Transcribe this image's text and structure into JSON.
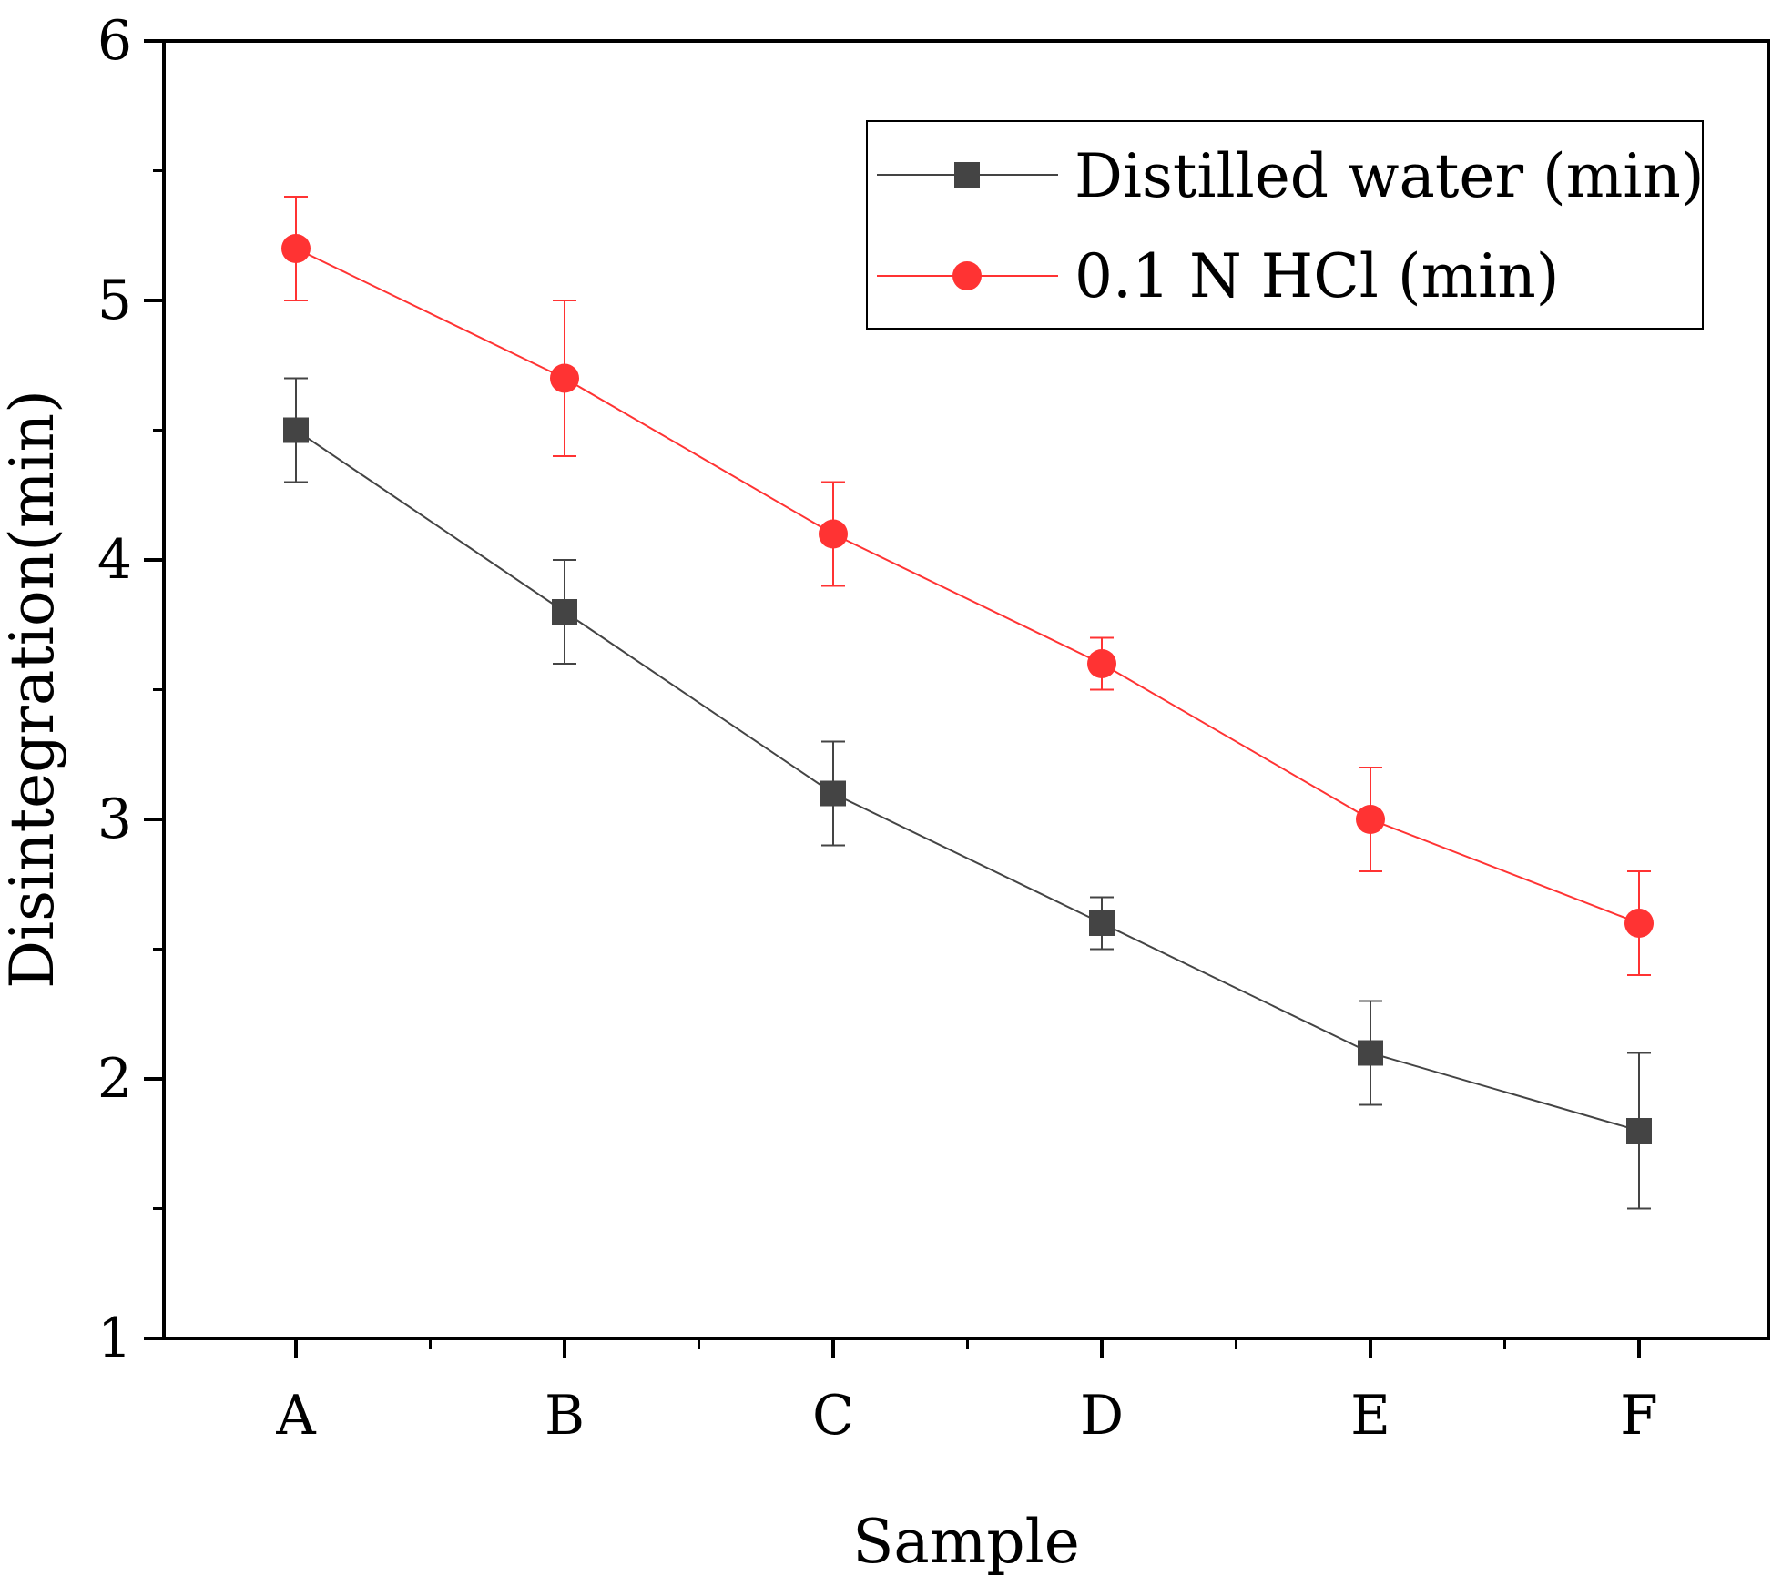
{
  "chart_data": {
    "type": "line",
    "title": "",
    "xlabel": "Sample",
    "ylabel": "Disintegration(min)",
    "categories": [
      "A",
      "B",
      "C",
      "D",
      "E",
      "F"
    ],
    "ylim": [
      1,
      6
    ],
    "yticks": [
      1,
      2,
      3,
      4,
      5,
      6
    ],
    "grid": false,
    "legend_position": "top-right",
    "series": [
      {
        "name": "Distilled water (min)",
        "marker": "square",
        "color": "#444444",
        "values": [
          4.5,
          3.8,
          3.1,
          2.6,
          2.1,
          1.8
        ],
        "errors": [
          0.2,
          0.2,
          0.2,
          0.1,
          0.2,
          0.3
        ]
      },
      {
        "name": "0.1 N HCl (min)",
        "marker": "circle",
        "color": "#ff3333",
        "values": [
          5.2,
          4.7,
          4.1,
          3.6,
          3.0,
          2.6
        ],
        "errors": [
          0.2,
          0.3,
          0.2,
          0.1,
          0.2,
          0.2
        ]
      }
    ]
  }
}
